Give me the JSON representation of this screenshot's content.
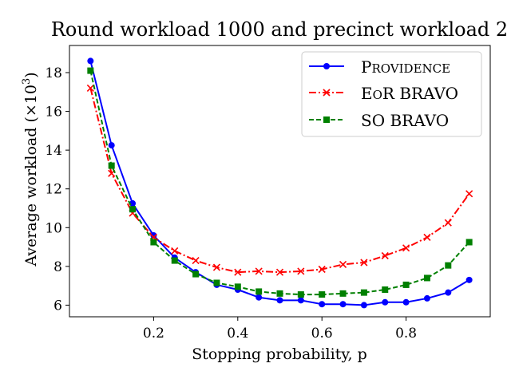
{
  "chart_data": {
    "type": "line",
    "title": "Round workload 1000 and precinct workload 2",
    "xlabel": "Stopping probability, p",
    "ylabel_text": "Average workload (×10",
    "ylabel_sup": "3",
    "ylabel_close": ")",
    "xlim": [
      0.0,
      1.0
    ],
    "ylim": [
      5.4,
      19.4
    ],
    "xticks": [
      0.2,
      0.4,
      0.6,
      0.8
    ],
    "xtick_labels": [
      "0.2",
      "0.4",
      "0.6",
      "0.8"
    ],
    "yticks": [
      6,
      8,
      10,
      12,
      14,
      16,
      18
    ],
    "ytick_labels": [
      "6",
      "8",
      "10",
      "12",
      "14",
      "16",
      "18"
    ],
    "grid": false,
    "legend_position": "top-right",
    "x": [
      0.05,
      0.1,
      0.15,
      0.2,
      0.25,
      0.3,
      0.35,
      0.4,
      0.45,
      0.5,
      0.55,
      0.6,
      0.65,
      0.7,
      0.75,
      0.8,
      0.85,
      0.9,
      0.95
    ],
    "series": [
      {
        "name": "Providence",
        "legend_cap": "P",
        "legend_rest": "ROVIDENCE",
        "color": "#0000ff",
        "marker": "circle",
        "linestyle": "solid",
        "values": [
          18.6,
          14.25,
          11.25,
          9.6,
          8.45,
          7.7,
          7.05,
          6.8,
          6.4,
          6.25,
          6.25,
          6.05,
          6.05,
          6.0,
          6.15,
          6.15,
          6.35,
          6.65,
          7.3
        ]
      },
      {
        "name": "EoR BRAVO",
        "legend_cap": "E",
        "legend_small": "O",
        "legend_cap2": "R",
        "legend_rest": " BRAVO",
        "color": "#ff0000",
        "marker": "x",
        "linestyle": "dashdot",
        "values": [
          17.2,
          12.8,
          10.75,
          9.5,
          8.8,
          8.3,
          7.95,
          7.7,
          7.75,
          7.7,
          7.75,
          7.85,
          8.1,
          8.2,
          8.55,
          8.95,
          9.5,
          10.25,
          11.75
        ]
      },
      {
        "name": "SO BRAVO",
        "legend_label": "SO BRAVO",
        "color": "#008000",
        "marker": "square",
        "linestyle": "dashed",
        "values": [
          18.1,
          13.2,
          10.95,
          9.25,
          8.3,
          7.6,
          7.15,
          6.95,
          6.7,
          6.6,
          6.55,
          6.55,
          6.6,
          6.65,
          6.8,
          7.05,
          7.4,
          8.05,
          9.25
        ]
      }
    ]
  }
}
